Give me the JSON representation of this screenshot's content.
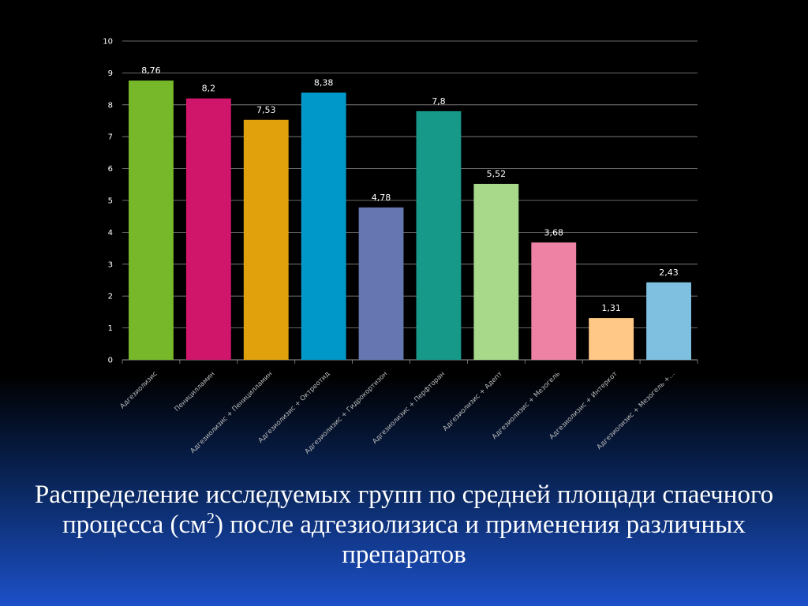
{
  "chart_data": {
    "type": "bar",
    "categories": [
      "Адгезиолизис",
      "Пеницилламин",
      "Адгезиолизис + Пеницилламин",
      "Адгезиолизис + Октреотид",
      "Адгезиолизис + Гидрокортизон",
      "Адгезиолизис + Перфторан",
      "Адгезиолизис + Адепт",
      "Адгезиолизис + Мезогель",
      "Адгезиолизис + Интеркот",
      "Адгезиолизис + Мезогель +…"
    ],
    "values": [
      8.76,
      8.2,
      7.53,
      8.38,
      4.78,
      7.8,
      5.52,
      3.68,
      1.31,
      2.43
    ],
    "value_labels": [
      "8,76",
      "8,2",
      "7,53",
      "8,38",
      "4,78",
      "7,8",
      "5,52",
      "3,68",
      "1,31",
      "2,43"
    ],
    "colors": [
      "#76b82a",
      "#d0166b",
      "#e0a10c",
      "#0098c8",
      "#6676b0",
      "#17998a",
      "#a8d88a",
      "#ee82a4",
      "#ffc886",
      "#7fc0e0"
    ],
    "ylim": [
      0,
      10
    ],
    "yticks": [
      0,
      1,
      2,
      3,
      4,
      5,
      6,
      7,
      8,
      9,
      10
    ],
    "grid": true,
    "legend": "none",
    "title": "",
    "xlabel": "",
    "ylabel": ""
  },
  "slide": {
    "title_part1": "Распределение исследуемых групп по средней площади спаечного процесса (см",
    "title_sup": "2",
    "title_part2": ") после адгезиолизиса и применения различных препаратов"
  }
}
